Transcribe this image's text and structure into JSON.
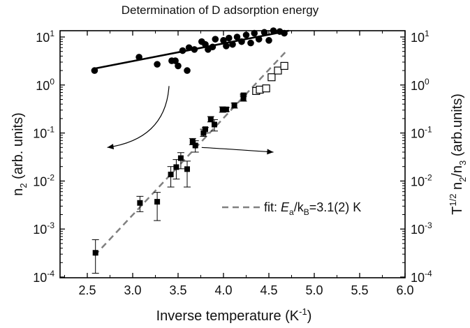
{
  "chart_data": {
    "type": "scatter",
    "title": "Determination of D adsorption energy",
    "xlabel": {
      "main": "Inverse temperature (K",
      "sup": "-1",
      "tail": ")"
    },
    "ylabel_left": {
      "main": "n",
      "sub": "2",
      "tail": " (arb. units)"
    },
    "ylabel_right": {
      "main": "T",
      "sup": "1/2",
      "mid": " n",
      "sub1": "2",
      "mid2": "/n",
      "sub2": "3",
      "tail": " (arb.units)"
    },
    "xlim": [
      2.2,
      6.0
    ],
    "ylim": [
      0.0001,
      20
    ],
    "yscale": "log",
    "x_ticks": [
      "2.5",
      "3.0",
      "3.5",
      "4.0",
      "4.5",
      "5.0",
      "5.5",
      "6.0"
    ],
    "y_ticks": [
      {
        "base": "10",
        "exp": "1",
        "value": 10
      },
      {
        "base": "10",
        "exp": "0",
        "value": 1
      },
      {
        "base": "10",
        "exp": "-1",
        "value": 0.1
      },
      {
        "base": "10",
        "exp": "-2",
        "value": 0.01
      },
      {
        "base": "10",
        "exp": "-3",
        "value": 0.001
      },
      {
        "base": "10",
        "exp": "-4",
        "value": 0.0001
      }
    ],
    "grid": false,
    "legend": {
      "placement": "lower-right",
      "prefix": "fit: ",
      "E": "E",
      "E_sub": "a",
      "slash_k": "/k",
      "k_sub": "B",
      "rest": "=3.1(2) K"
    },
    "series": [
      {
        "marker": "filled-circle",
        "color": "#000000",
        "points": [
          [
            2.58,
            2.0
          ],
          [
            3.07,
            3.8
          ],
          [
            3.27,
            2.7
          ],
          [
            3.43,
            3.2
          ],
          [
            3.47,
            3.2
          ],
          [
            3.5,
            2.5
          ],
          [
            3.55,
            5.2
          ],
          [
            3.6,
            2.0
          ],
          [
            3.62,
            6.0
          ],
          [
            3.68,
            5.5
          ],
          [
            3.76,
            8.0
          ],
          [
            3.8,
            7.0
          ],
          [
            3.83,
            5.5
          ],
          [
            3.88,
            6.2
          ],
          [
            3.91,
            9.0
          ],
          [
            4.0,
            8.5
          ],
          [
            4.03,
            6.5
          ],
          [
            4.06,
            9.5
          ],
          [
            4.1,
            7.0
          ],
          [
            4.15,
            10.0
          ],
          [
            4.2,
            8.0
          ],
          [
            4.25,
            11.0
          ],
          [
            4.3,
            7.5
          ],
          [
            4.34,
            12.0
          ],
          [
            4.39,
            9.0
          ],
          [
            4.45,
            12.5
          ],
          [
            4.5,
            8.5
          ],
          [
            4.55,
            13.5
          ],
          [
            4.62,
            13.0
          ],
          [
            4.67,
            12.0
          ]
        ]
      },
      {
        "marker": "filled-square",
        "color": "#000000",
        "points": [
          [
            2.59,
            0.00032,
            0.00012,
            0.0006
          ],
          [
            3.08,
            0.0035,
            0.0023,
            0.0048
          ],
          [
            3.27,
            0.0037,
            0.0015,
            0.0058
          ],
          [
            3.42,
            0.0137,
            0.0075,
            0.02
          ],
          [
            3.48,
            0.0195,
            0.011,
            0.028
          ],
          [
            3.53,
            0.03,
            0.018,
            0.039
          ],
          [
            3.6,
            0.0177,
            0.0075,
            0.026
          ],
          [
            3.66,
            0.066,
            0.057,
            0.077
          ],
          [
            3.69,
            0.055,
            0.04,
            0.069
          ],
          [
            3.78,
            0.1,
            0.085,
            0.12
          ],
          [
            3.8,
            0.12,
            0.1,
            0.13
          ],
          [
            3.86,
            0.195,
            0.17,
            0.22
          ],
          [
            3.9,
            0.15,
            0.11,
            0.19
          ],
          [
            3.99,
            0.31,
            0.27,
            0.35
          ],
          [
            4.03,
            0.31,
            0.28,
            0.34
          ],
          [
            4.12,
            0.38,
            0.33,
            0.42
          ],
          [
            4.22,
            0.53,
            0.46,
            0.62
          ],
          [
            4.22,
            0.61,
            0.58,
            0.65
          ]
        ]
      },
      {
        "marker": "open-square",
        "color": "#000000",
        "points": [
          [
            4.36,
            0.75
          ],
          [
            4.4,
            0.8
          ],
          [
            4.47,
            0.85
          ],
          [
            4.53,
            1.45
          ],
          [
            4.6,
            2.0
          ],
          [
            4.67,
            2.5
          ]
        ]
      }
    ],
    "fits": [
      {
        "style": "solid",
        "color": "#000000",
        "from": [
          2.58,
          2.2
        ],
        "to": [
          4.72,
          13.5
        ]
      },
      {
        "style": "dashed",
        "color": "#808080",
        "from": [
          2.58,
          0.00028
        ],
        "to": [
          4.68,
          4.8
        ]
      }
    ],
    "arrows": [
      {
        "from": [
          3.4,
          0.95
        ],
        "to": [
          2.72,
          0.05
        ]
      },
      {
        "from": [
          3.76,
          0.05
        ],
        "to": [
          4.55,
          0.04
        ]
      }
    ]
  }
}
